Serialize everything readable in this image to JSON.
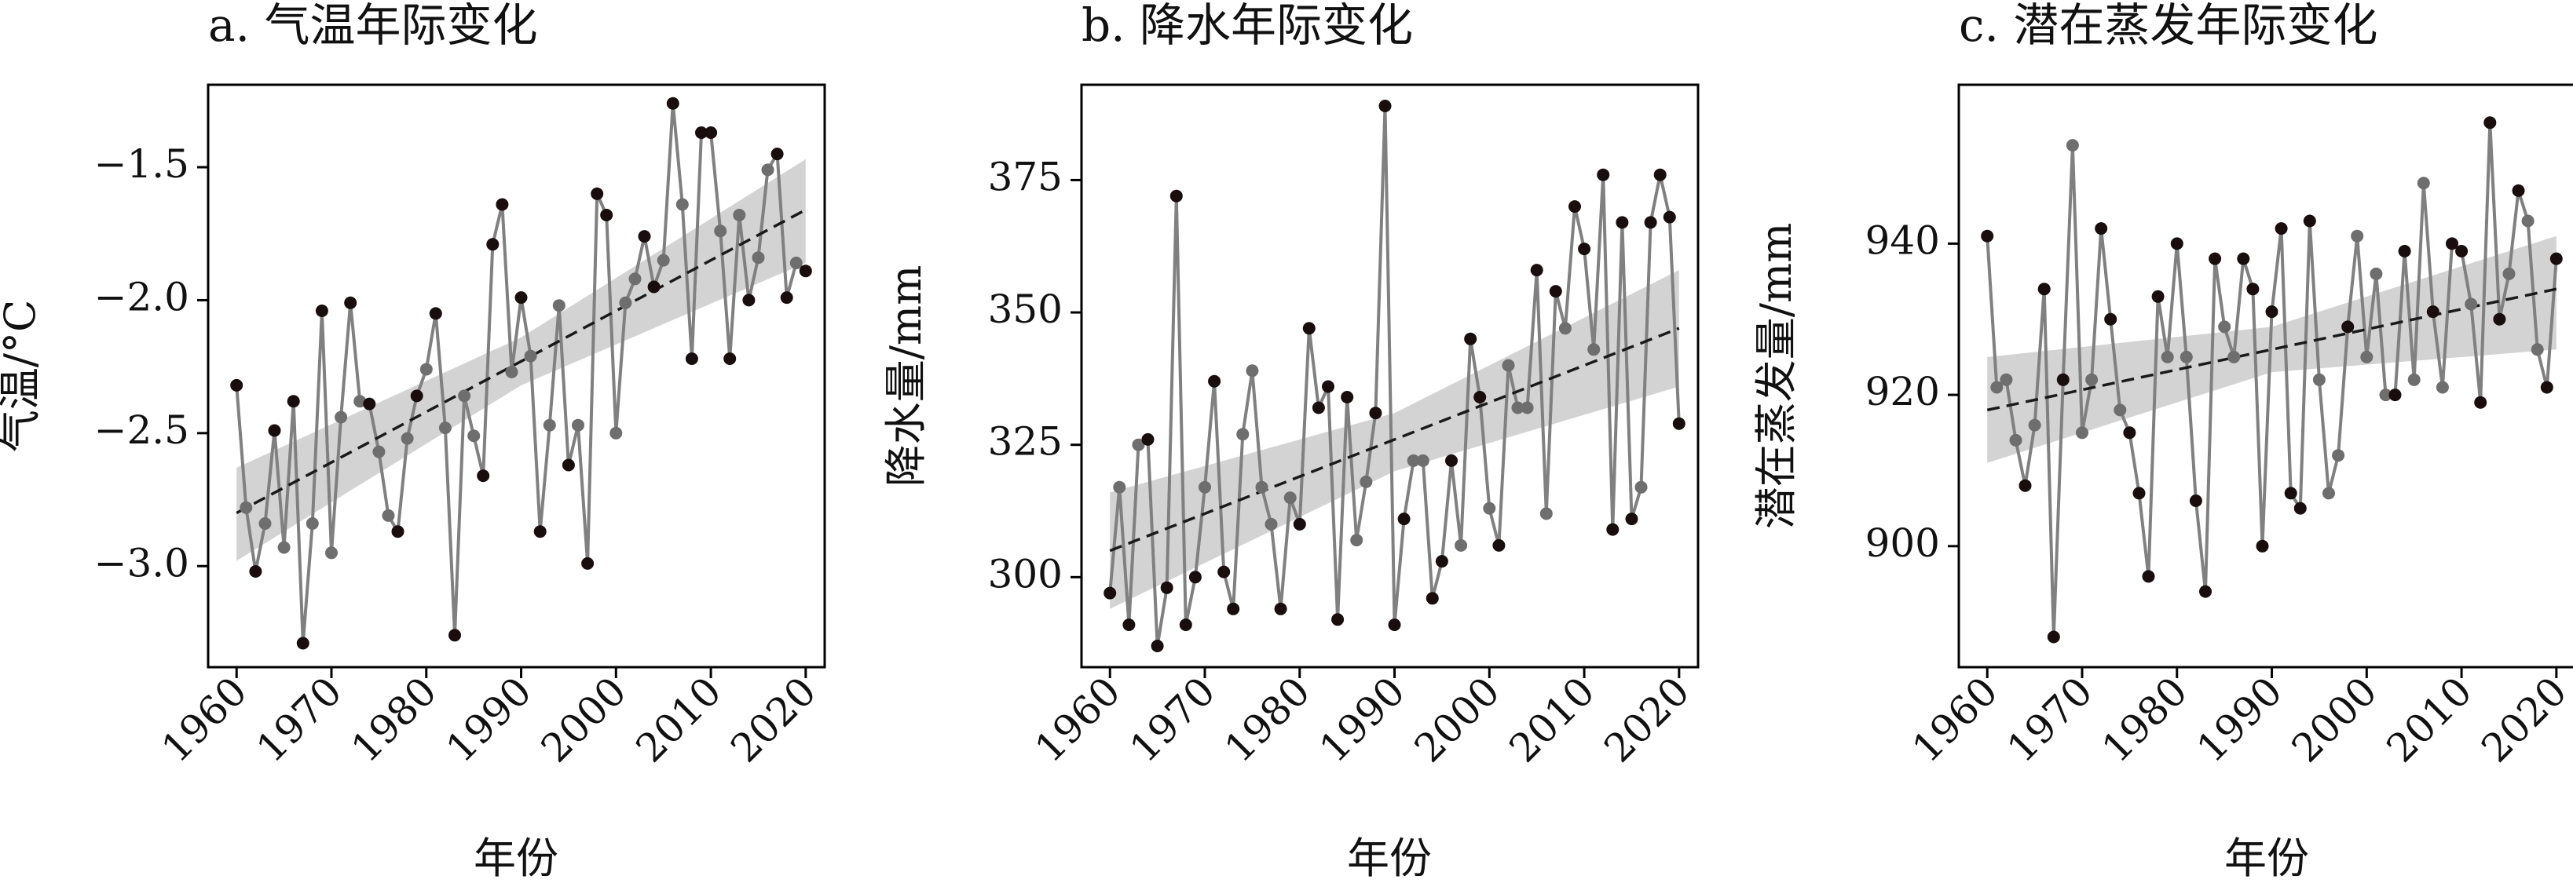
{
  "chart_data": [
    {
      "type": "line",
      "title": "a. 气温年际变化",
      "xlabel": "年份",
      "ylabel": "气温/°C",
      "xlim": [
        1957,
        2022
      ],
      "ylim": [
        -3.38,
        -1.19
      ],
      "xticks": [
        1960,
        1970,
        1980,
        1990,
        2000,
        2010,
        2020
      ],
      "xtick_labels": [
        "1960",
        "1970",
        "1980",
        "1990",
        "2000",
        "2010",
        "2020"
      ],
      "yticks": [
        -3.0,
        -2.5,
        -2.0,
        -1.5
      ],
      "ytick_labels": [
        "−3.0",
        "−2.5",
        "−2.0",
        "−1.5"
      ],
      "x": [
        1960,
        1961,
        1962,
        1963,
        1964,
        1965,
        1966,
        1967,
        1968,
        1969,
        1970,
        1971,
        1972,
        1973,
        1974,
        1975,
        1976,
        1977,
        1978,
        1979,
        1980,
        1981,
        1982,
        1983,
        1984,
        1985,
        1986,
        1987,
        1988,
        1989,
        1990,
        1991,
        1992,
        1993,
        1994,
        1995,
        1996,
        1997,
        1998,
        1999,
        2000,
        2001,
        2002,
        2003,
        2004,
        2005,
        2006,
        2007,
        2008,
        2009,
        2010,
        2011,
        2012,
        2013,
        2014,
        2015,
        2016,
        2017,
        2018,
        2019,
        2020
      ],
      "series": [
        {
          "values": [
            -2.32,
            -2.78,
            -3.02,
            -2.84,
            -2.49,
            -2.93,
            -2.38,
            -3.29,
            -2.84,
            -2.04,
            -2.95,
            -2.44,
            -2.01,
            -2.38,
            -2.39,
            -2.57,
            -2.81,
            -2.87,
            -2.52,
            -2.36,
            -2.26,
            -2.05,
            -2.48,
            -3.26,
            -2.36,
            -2.51,
            -2.66,
            -1.79,
            -1.64,
            -2.27,
            -1.99,
            -2.21,
            -2.87,
            -2.47,
            -2.02,
            -2.62,
            -2.47,
            -2.99,
            -1.6,
            -1.68,
            -2.5,
            -2.01,
            -1.92,
            -1.76,
            -1.95,
            -1.85,
            -1.26,
            -1.64,
            -2.22,
            -1.37,
            -1.37,
            -1.74,
            -2.22,
            -1.68,
            -2.0,
            -1.84,
            -1.51,
            -1.45,
            -1.99,
            -1.86,
            -1.89
          ]
        }
      ],
      "trend": {
        "start": [
          1960,
          -2.8
        ],
        "end": [
          2020,
          -1.66
        ]
      },
      "confidence_band": {
        "x": [
          1960,
          1990,
          2020
        ],
        "lower": [
          -2.98,
          -2.32,
          -1.86
        ],
        "upper": [
          -2.63,
          -2.14,
          -1.47
        ]
      },
      "colors": {
        "line": "#808080",
        "point_dark": "#1a0d0d",
        "point_light": "#6e6e6e",
        "band": "#d3d3d3",
        "trend": "#1a1a1a"
      },
      "grid": false,
      "legend": "none"
    },
    {
      "type": "line",
      "title": "b. 降水年际变化",
      "xlabel": "年份",
      "ylabel": "降水量/mm",
      "xlim": [
        1957,
        2022
      ],
      "ylim": [
        283,
        393
      ],
      "xticks": [
        1960,
        1970,
        1980,
        1990,
        2000,
        2010,
        2020
      ],
      "xtick_labels": [
        "1960",
        "1970",
        "1980",
        "1990",
        "2000",
        "2010",
        "2020"
      ],
      "yticks": [
        300,
        325,
        350,
        375
      ],
      "ytick_labels": [
        "300",
        "325",
        "350",
        "375"
      ],
      "x": [
        1960,
        1961,
        1962,
        1963,
        1964,
        1965,
        1966,
        1967,
        1968,
        1969,
        1970,
        1971,
        1972,
        1973,
        1974,
        1975,
        1976,
        1977,
        1978,
        1979,
        1980,
        1981,
        1982,
        1983,
        1984,
        1985,
        1986,
        1987,
        1988,
        1989,
        1990,
        1991,
        1992,
        1993,
        1994,
        1995,
        1996,
        1997,
        1998,
        1999,
        2000,
        2001,
        2002,
        2003,
        2004,
        2005,
        2006,
        2007,
        2008,
        2009,
        2010,
        2011,
        2012,
        2013,
        2014,
        2015,
        2016,
        2017,
        2018,
        2019,
        2020
      ],
      "series": [
        {
          "values": [
            297,
            317,
            291,
            325,
            326,
            287,
            298,
            372,
            291,
            300,
            317,
            337,
            301,
            294,
            327,
            339,
            317,
            310,
            294,
            315,
            310,
            347,
            332,
            336,
            292,
            334,
            307,
            318,
            331,
            389,
            291,
            311,
            322,
            322,
            296,
            303,
            322,
            306,
            345,
            334,
            313,
            306,
            340,
            332,
            332,
            358,
            312,
            354,
            347,
            370,
            362,
            343,
            376,
            309,
            367,
            311,
            317,
            367,
            376,
            368,
            329
          ]
        }
      ],
      "trend": {
        "start": [
          1960,
          305
        ],
        "end": [
          2020,
          347
        ]
      },
      "confidence_band": {
        "x": [
          1960,
          1990,
          2020
        ],
        "lower": [
          294,
          320,
          336
        ],
        "upper": [
          316,
          331,
          358
        ]
      },
      "colors": {
        "line": "#808080",
        "point_dark": "#1a0d0d",
        "point_light": "#6e6e6e",
        "band": "#d3d3d3",
        "trend": "#1a1a1a"
      },
      "grid": false,
      "legend": "none"
    },
    {
      "type": "line",
      "title": "c. 潜在蒸发年际变化",
      "xlabel": "年份",
      "ylabel": "潜在蒸发量/mm",
      "xlim": [
        1957,
        2022
      ],
      "ylim": [
        884,
        961
      ],
      "xticks": [
        1960,
        1970,
        1980,
        1990,
        2000,
        2010,
        2020
      ],
      "xtick_labels": [
        "1960",
        "1970",
        "1980",
        "1990",
        "2000",
        "2010",
        "2020"
      ],
      "yticks": [
        900,
        920,
        940
      ],
      "ytick_labels": [
        "900",
        "920",
        "940"
      ],
      "x": [
        1960,
        1961,
        1962,
        1963,
        1964,
        1965,
        1966,
        1967,
        1968,
        1969,
        1970,
        1971,
        1972,
        1973,
        1974,
        1975,
        1976,
        1977,
        1978,
        1979,
        1980,
        1981,
        1982,
        1983,
        1984,
        1985,
        1986,
        1987,
        1988,
        1989,
        1990,
        1991,
        1992,
        1993,
        1994,
        1995,
        1996,
        1997,
        1998,
        1999,
        2000,
        2001,
        2002,
        2003,
        2004,
        2005,
        2006,
        2007,
        2008,
        2009,
        2010,
        2011,
        2012,
        2013,
        2014,
        2015,
        2016,
        2017,
        2018,
        2019,
        2020
      ],
      "series": [
        {
          "values": [
            941,
            921,
            922,
            914,
            908,
            916,
            934,
            888,
            922,
            953,
            915,
            922,
            942,
            930,
            918,
            915,
            907,
            896,
            933,
            925,
            940,
            925,
            906,
            894,
            938,
            929,
            925,
            938,
            934,
            900,
            931,
            942,
            907,
            905,
            943,
            922,
            907,
            912,
            929,
            941,
            925,
            936,
            920,
            920,
            939,
            922,
            948,
            931,
            921,
            940,
            939,
            932,
            919,
            956,
            930,
            936,
            947,
            943,
            926,
            921,
            938
          ]
        }
      ],
      "trend": {
        "start": [
          1960,
          918
        ],
        "end": [
          2020,
          934
        ]
      },
      "confidence_band": {
        "x": [
          1960,
          1990,
          2020
        ],
        "lower": [
          911,
          923,
          926
        ],
        "upper": [
          925,
          929,
          941
        ]
      },
      "colors": {
        "line": "#808080",
        "point_dark": "#1a0d0d",
        "point_light": "#6e6e6e",
        "band": "#d3d3d3",
        "trend": "#1a1a1a"
      },
      "grid": false,
      "legend": "none"
    }
  ]
}
